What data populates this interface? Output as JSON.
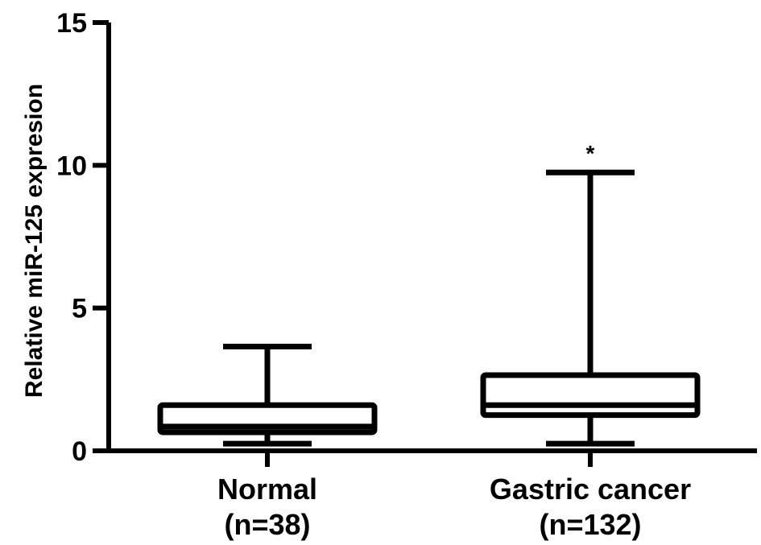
{
  "chart_data": {
    "type": "box",
    "ylabel": "Relative miR-125 expresion",
    "ylim": [
      0,
      15
    ],
    "yticks": [
      {
        "value": 0,
        "label": "0"
      },
      {
        "value": 5,
        "label": "5"
      },
      {
        "value": 10,
        "label": "10"
      },
      {
        "value": 15,
        "label": "15"
      }
    ],
    "grid": false,
    "groups": [
      {
        "line1": "Normal",
        "line2": "(n=38)",
        "min": 0.25,
        "q1": 0.65,
        "median": 0.85,
        "q3": 1.6,
        "max": 3.65,
        "annotation": ""
      },
      {
        "line1": "Gastric cancer",
        "line2": "(n=132)",
        "min": 0.25,
        "q1": 1.25,
        "median": 1.6,
        "q3": 2.65,
        "max": 9.75,
        "annotation": "*"
      }
    ]
  }
}
